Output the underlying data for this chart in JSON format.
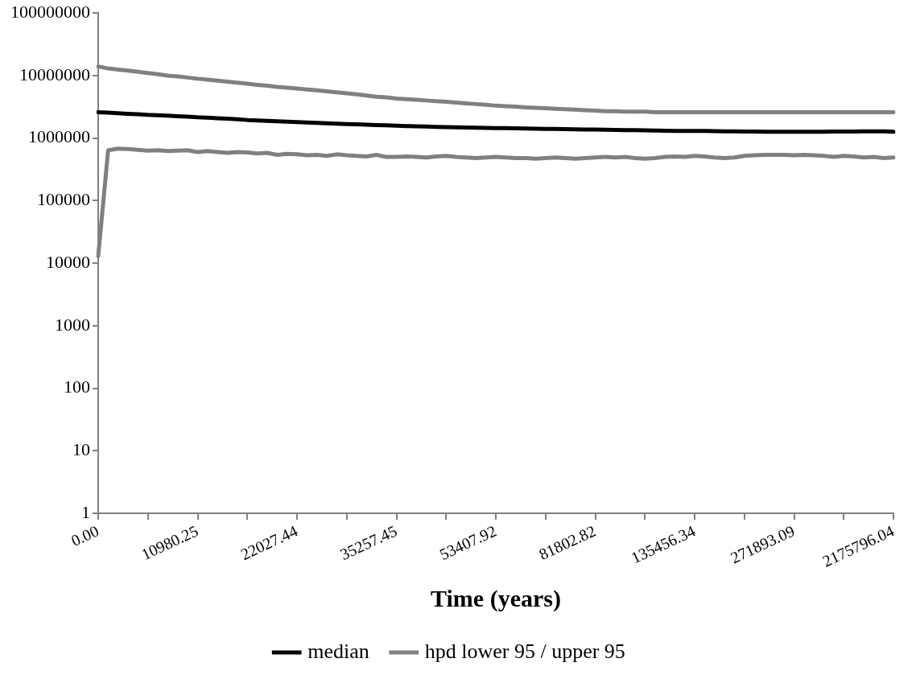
{
  "chart_data": {
    "type": "line",
    "xlabel": "Time (years)",
    "categories": [
      "0.00",
      null,
      null,
      null,
      null,
      null,
      null,
      null,
      null,
      null,
      "10980.25",
      null,
      null,
      null,
      null,
      null,
      null,
      null,
      null,
      null,
      "22027.44",
      null,
      null,
      null,
      null,
      null,
      null,
      null,
      null,
      null,
      "35257.45",
      null,
      null,
      null,
      null,
      null,
      null,
      null,
      null,
      null,
      "53407.92",
      null,
      null,
      null,
      null,
      null,
      null,
      null,
      null,
      null,
      "81802.82",
      null,
      null,
      null,
      null,
      null,
      null,
      null,
      null,
      null,
      "135456.34",
      null,
      null,
      null,
      null,
      null,
      null,
      null,
      null,
      null,
      "271893.09",
      null,
      null,
      null,
      null,
      null,
      null,
      null,
      null,
      null,
      "2175796.04"
    ],
    "log": "y",
    "ylim": [
      1,
      100000000
    ],
    "yticks": [
      1,
      10,
      100,
      1000,
      10000,
      100000,
      1000000,
      10000000,
      100000000
    ],
    "grid": false,
    "legend": "bottom",
    "marker": "none",
    "line_style": "solid",
    "series": [
      {
        "name": "median",
        "color": "#000000",
        "values": [
          2600000,
          2550000,
          2500000,
          2450000,
          2400000,
          2350000,
          2320000,
          2280000,
          2240000,
          2200000,
          2150000,
          2120000,
          2080000,
          2040000,
          2000000,
          1950000,
          1920000,
          1890000,
          1860000,
          1830000,
          1800000,
          1780000,
          1750000,
          1730000,
          1700000,
          1680000,
          1660000,
          1640000,
          1620000,
          1600000,
          1580000,
          1560000,
          1550000,
          1530000,
          1510000,
          1500000,
          1490000,
          1480000,
          1470000,
          1460000,
          1450000,
          1440000,
          1430000,
          1420000,
          1410000,
          1400000,
          1400000,
          1390000,
          1380000,
          1370000,
          1370000,
          1360000,
          1350000,
          1340000,
          1340000,
          1330000,
          1320000,
          1310000,
          1300000,
          1300000,
          1300000,
          1300000,
          1290000,
          1280000,
          1280000,
          1270000,
          1270000,
          1260000,
          1260000,
          1260000,
          1260000,
          1260000,
          1260000,
          1260000,
          1270000,
          1270000,
          1270000,
          1280000,
          1280000,
          1280000,
          1260000
        ]
      },
      {
        "name": "hpd lower 95 / upper 95",
        "color": "#808080",
        "values": [
          13000,
          640000,
          680000,
          670000,
          650000,
          630000,
          640000,
          620000,
          630000,
          640000,
          600000,
          620000,
          600000,
          580000,
          600000,
          590000,
          570000,
          580000,
          540000,
          560000,
          550000,
          530000,
          540000,
          520000,
          550000,
          530000,
          520000,
          510000,
          540000,
          500000,
          500000,
          510000,
          500000,
          490000,
          510000,
          520000,
          500000,
          490000,
          480000,
          490000,
          500000,
          490000,
          480000,
          480000,
          470000,
          480000,
          490000,
          480000,
          470000,
          480000,
          490000,
          500000,
          490000,
          500000,
          480000,
          470000,
          480000,
          500000,
          510000,
          500000,
          520000,
          510000,
          490000,
          480000,
          490000,
          520000,
          530000,
          540000,
          540000,
          540000,
          530000,
          540000,
          530000,
          520000,
          500000,
          520000,
          510000,
          490000,
          500000,
          480000,
          490000
        ]
      },
      {
        "color": "#808080",
        "values": [
          14000000,
          13000000,
          12500000,
          12000000,
          11500000,
          11000000,
          10500000,
          10000000,
          9700000,
          9300000,
          8900000,
          8600000,
          8300000,
          8000000,
          7700000,
          7400000,
          7100000,
          6900000,
          6600000,
          6400000,
          6200000,
          6000000,
          5800000,
          5600000,
          5400000,
          5200000,
          5000000,
          4800000,
          4600000,
          4500000,
          4300000,
          4200000,
          4100000,
          4000000,
          3900000,
          3800000,
          3700000,
          3600000,
          3500000,
          3400000,
          3300000,
          3250000,
          3200000,
          3100000,
          3050000,
          3000000,
          2950000,
          2900000,
          2850000,
          2800000,
          2750000,
          2700000,
          2700000,
          2650000,
          2650000,
          2650000,
          2600000,
          2600000,
          2600000,
          2600000,
          2600000,
          2600000,
          2600000,
          2600000,
          2600000,
          2600000,
          2600000,
          2600000,
          2600000,
          2600000,
          2600000,
          2600000,
          2600000,
          2600000,
          2600000,
          2600000,
          2600000,
          2600000,
          2600000,
          2600000,
          2600000
        ]
      }
    ]
  }
}
